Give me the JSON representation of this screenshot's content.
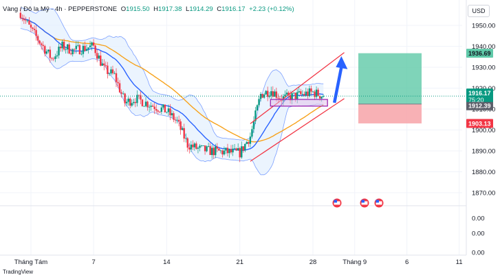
{
  "legend": {
    "symbol": "Vàng / Đô la Mỹ · 4h · PEPPERSTONE",
    "o_label": "O",
    "o_value": "1915.50",
    "h_label": "H",
    "h_value": "1917.38",
    "l_label": "L",
    "l_value": "1914.29",
    "c_label": "C",
    "c_value": "1916.17",
    "change": "+2.23 (+0.12%)"
  },
  "currency_button": "USD",
  "footer_logo": "TradingView",
  "price_tags": {
    "target": "1936.69",
    "last": "1916.17",
    "countdown": "75:20",
    "entry": "1912.39",
    "stop": "1903.13"
  },
  "indicator_ticks": [
    "0.00",
    "0.00",
    "0.00"
  ],
  "colors": {
    "up": "#089981",
    "down": "#f23645",
    "bb_line": "#2962ff",
    "bb_fill": "#e3effd",
    "ma_orange": "#f7a21b",
    "ma_blue": "#2962ff",
    "channel": "#f23645",
    "arrow": "#2962ff",
    "box": "#9c27b0",
    "profit_zone": "#5fc9a8",
    "loss_zone": "#f7a8ad"
  },
  "chart_data": {
    "type": "candlestick",
    "symbol": "XAUUSD",
    "timeframe": "4h",
    "broker": "PEPPERSTONE",
    "y_axis_ticks": [
      1870,
      1880,
      1890,
      1900,
      1910,
      1920,
      1930,
      1940,
      1950
    ],
    "ylim": [
      1864,
      1958
    ],
    "x_axis_labels": [
      "Tháng Tám",
      "7",
      "14",
      "21",
      "28",
      "Tháng 9",
      "6",
      "11"
    ],
    "x_axis_dates": [
      "2023-08-01",
      "2023-08-07",
      "2023-08-14",
      "2023-08-21",
      "2023-08-28",
      "2023-09-01",
      "2023-09-06",
      "2023-09-11"
    ],
    "close_path": [
      [
        "2023-07-31",
        1956
      ],
      [
        "2023-08-01",
        1948
      ],
      [
        "2023-08-02",
        1941
      ],
      [
        "2023-08-03",
        1934
      ],
      [
        "2023-08-04",
        1940
      ],
      [
        "2023-08-05",
        1938
      ],
      [
        "2023-08-07",
        1940
      ],
      [
        "2023-08-08",
        1929
      ],
      [
        "2023-08-09",
        1926
      ],
      [
        "2023-08-10",
        1913
      ],
      [
        "2023-08-11",
        1915
      ],
      [
        "2023-08-14",
        1909
      ],
      [
        "2023-08-15",
        1904
      ],
      [
        "2023-08-16",
        1893
      ],
      [
        "2023-08-17",
        1891
      ],
      [
        "2023-08-18",
        1890
      ],
      [
        "2023-08-21",
        1889
      ],
      [
        "2023-08-22",
        1897
      ],
      [
        "2023-08-23",
        1917
      ],
      [
        "2023-08-24",
        1919
      ],
      [
        "2023-08-25",
        1915
      ],
      [
        "2023-08-28",
        1918
      ],
      [
        "2023-08-29",
        1916.17
      ]
    ],
    "last_price": 1916.17,
    "position_tool": {
      "entry": 1912.39,
      "target": 1936.69,
      "stop": 1903.13
    },
    "ascending_channel": {
      "upper": [
        [
          "2023-08-22",
          1903
        ],
        [
          "2023-08-31",
          1937
        ]
      ],
      "lower": [
        [
          "2023-08-22",
          1885
        ],
        [
          "2023-08-31",
          1915
        ]
      ]
    },
    "indicator_values": [
      0.0,
      0.0,
      0.0
    ]
  }
}
